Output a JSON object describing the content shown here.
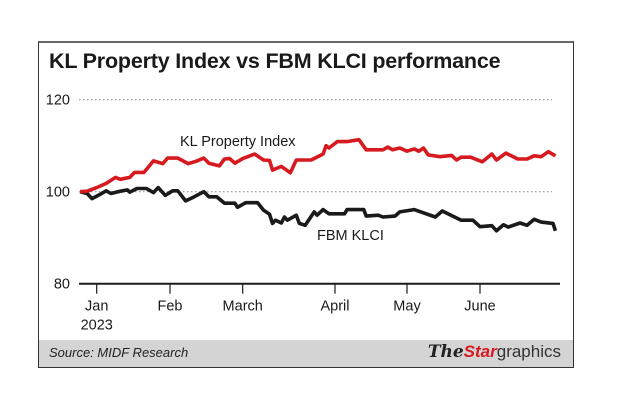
{
  "title": "KL Property Index vs FBM KLCI performance",
  "footer": {
    "source": "Source: MIDF Research",
    "logo": "TheStargraphics"
  },
  "colors": {
    "kl_property": "#d71920",
    "fbm_klci": "#1a1a1a",
    "footer_bg": "#d4d4d4"
  },
  "chart_data": {
    "type": "line",
    "title": "KL Property Index vs FBM KLCI performance",
    "xlabel": "",
    "ylabel": "",
    "ylim": [
      80,
      120
    ],
    "yticks": [
      80,
      100,
      120
    ],
    "y_tick_labels": [
      "80",
      "100",
      "120"
    ],
    "grid": "horizontal dotted at 100 and 120",
    "x_ticks": [
      {
        "date": "2023-01-01",
        "label": "Jan",
        "sublabel": "2023"
      },
      {
        "date": "2023-02-01",
        "label": "Feb"
      },
      {
        "date": "2023-03-01",
        "label": "March"
      },
      {
        "date": "2023-04-01",
        "label": "April"
      },
      {
        "date": "2023-05-01",
        "label": "May"
      },
      {
        "date": "2023-06-01",
        "label": "June"
      }
    ],
    "series": [
      {
        "name": "KL Property Index",
        "color": "#d71920",
        "x": [
          "2022-12-25",
          "2022-12-28",
          "2023-01-01",
          "2023-01-05",
          "2023-01-09",
          "2023-01-11",
          "2023-01-15",
          "2023-01-17",
          "2023-01-21",
          "2023-01-25",
          "2023-01-29",
          "2023-01-31",
          "2023-02-04",
          "2023-02-08",
          "2023-02-11",
          "2023-02-14",
          "2023-02-16",
          "2023-02-20",
          "2023-02-22",
          "2023-02-24",
          "2023-02-26",
          "2023-03-01",
          "2023-03-03",
          "2023-03-05",
          "2023-03-08",
          "2023-03-10",
          "2023-03-11",
          "2023-03-14",
          "2023-03-17",
          "2023-03-19",
          "2023-03-24",
          "2023-03-28",
          "2023-03-29",
          "2023-03-30",
          "2023-04-02",
          "2023-04-06",
          "2023-04-11",
          "2023-04-14",
          "2023-04-21",
          "2023-04-23",
          "2023-04-25",
          "2023-04-28",
          "2023-05-01",
          "2023-05-04",
          "2023-05-06",
          "2023-05-08",
          "2023-05-10",
          "2023-05-15",
          "2023-05-20",
          "2023-05-22",
          "2023-05-24",
          "2023-05-28",
          "2023-06-02",
          "2023-06-06",
          "2023-06-08",
          "2023-06-12",
          "2023-06-17",
          "2023-06-21",
          "2023-06-24",
          "2023-06-27",
          "2023-06-30",
          "2023-07-03"
        ],
        "y": [
          100,
          100.1,
          100.9,
          101.8,
          103.1,
          102.7,
          103.1,
          104.2,
          104.2,
          106.7,
          106.1,
          107.3,
          107.3,
          106.1,
          106.6,
          107.3,
          106.2,
          105.6,
          107.1,
          107.2,
          106.2,
          107.2,
          107.7,
          108.2,
          106.9,
          106.8,
          104.7,
          105.5,
          104.1,
          106.9,
          106.9,
          108.2,
          110,
          109.5,
          110.9,
          110.9,
          111.3,
          109.1,
          109.1,
          109.7,
          109.1,
          109.5,
          108.8,
          109.3,
          108.8,
          109.5,
          108,
          107.6,
          107.9,
          106.9,
          107.5,
          107.5,
          106.5,
          108.2,
          106.9,
          108.4,
          107.1,
          107.1,
          107.8,
          107.6,
          108.7,
          107.8
        ]
      },
      {
        "name": "FBM KLCI",
        "color": "#1a1a1a",
        "x": [
          "2022-12-25",
          "2022-12-28",
          "2022-12-30",
          "2023-01-02",
          "2023-01-05",
          "2023-01-07",
          "2023-01-10",
          "2023-01-14",
          "2023-01-15",
          "2023-01-18",
          "2023-01-22",
          "2023-01-25",
          "2023-01-27",
          "2023-01-30",
          "2023-02-02",
          "2023-02-04",
          "2023-02-07",
          "2023-02-10",
          "2023-02-14",
          "2023-02-16",
          "2023-02-19",
          "2023-02-22",
          "2023-02-26",
          "2023-02-27",
          "2023-03-02",
          "2023-03-06",
          "2023-03-08",
          "2023-03-10",
          "2023-03-11",
          "2023-03-12",
          "2023-03-14",
          "2023-03-15",
          "2023-03-16",
          "2023-03-19",
          "2023-03-20",
          "2023-03-22",
          "2023-03-25",
          "2023-03-26",
          "2023-03-28",
          "2023-03-30",
          "2023-04-05",
          "2023-04-06",
          "2023-04-13",
          "2023-04-14",
          "2023-04-19",
          "2023-04-21",
          "2023-04-26",
          "2023-04-28",
          "2023-05-04",
          "2023-05-13",
          "2023-05-16",
          "2023-05-24",
          "2023-05-29",
          "2023-06-01",
          "2023-06-06",
          "2023-06-08",
          "2023-06-11",
          "2023-06-13",
          "2023-06-18",
          "2023-06-21",
          "2023-06-24",
          "2023-06-27",
          "2023-07-02",
          "2023-07-03"
        ],
        "y": [
          100,
          99.6,
          98.5,
          99.3,
          100.2,
          99.6,
          100,
          100.4,
          99.9,
          100.7,
          100.7,
          99.8,
          100.9,
          99.2,
          100.2,
          100.2,
          98,
          98.8,
          100,
          98.9,
          98.9,
          97.5,
          97.5,
          96.6,
          97.6,
          97.6,
          96,
          95.1,
          93.1,
          93.8,
          93.2,
          94.5,
          93.8,
          94.9,
          93.1,
          92.7,
          95.6,
          94.9,
          96.1,
          95.2,
          95.2,
          96.1,
          96.1,
          94.7,
          94.9,
          94.5,
          94.7,
          95.6,
          96.1,
          94.5,
          95.8,
          93.8,
          93.8,
          92.4,
          92.6,
          91.5,
          92.8,
          92.3,
          93.2,
          92.7,
          94,
          93.4,
          93.1,
          91.5
        ]
      }
    ],
    "annotations": [
      "KL Property Index",
      "FBM KLCI"
    ]
  }
}
